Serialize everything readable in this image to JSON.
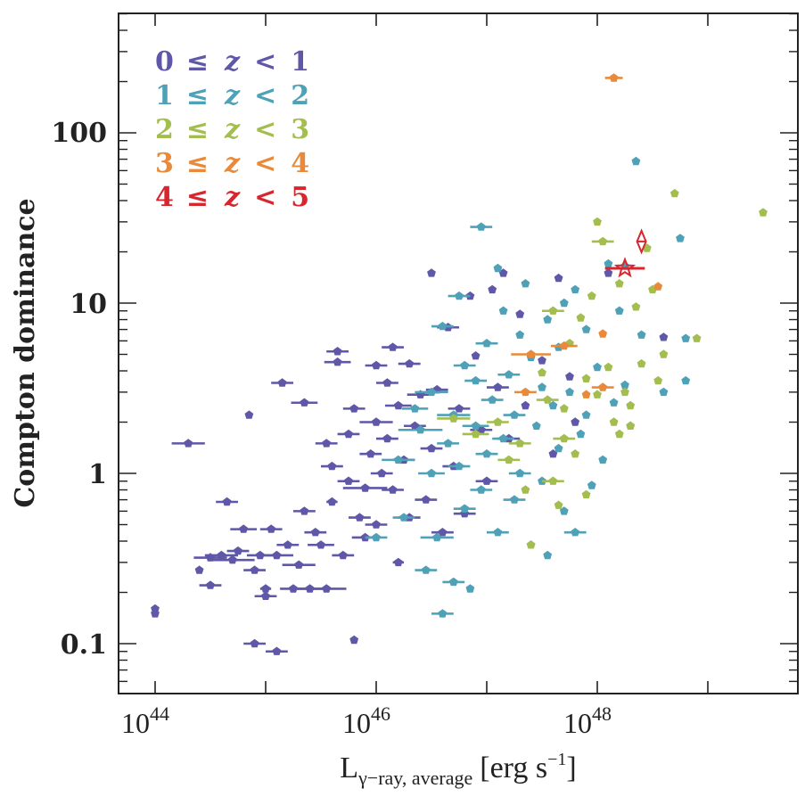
{
  "chart_data": {
    "type": "scatter",
    "title": "",
    "xlabel": "L_{γ−ray, average} [erg s^{−1}]",
    "xlabel_main": "L",
    "xlabel_sub": "γ−ray, average",
    "xlabel_units": "[erg s",
    "xlabel_units_sup": "−1",
    "xlabel_units_close": "]",
    "ylabel": "Compton dominance",
    "xscale": "log",
    "yscale": "log",
    "xlim_log10": [
      43.67,
      49.8
    ],
    "ylim": [
      0.05,
      500
    ],
    "grid": false,
    "legend_position": "top-left",
    "xticks": [
      {
        "base": "10",
        "exp": "44",
        "value_log10": 44
      },
      {
        "base": "10",
        "exp": "46",
        "value_log10": 46
      },
      {
        "base": "10",
        "exp": "48",
        "value_log10": 48
      }
    ],
    "xticks_unlabeled_log10": [
      45,
      47,
      49
    ],
    "yticks": [
      {
        "label": "100",
        "value": 100
      },
      {
        "label": "10",
        "value": 10
      },
      {
        "label": "1",
        "value": 1
      },
      {
        "label": "0.1",
        "value": 0.1
      }
    ],
    "series": [
      {
        "name": "0 ≤ z < 1",
        "legend": {
          "lo": "0",
          "le": "≤",
          "z": "z",
          "lt": "<",
          "hi": "1"
        },
        "color": "#5f57a8",
        "marker": "pentagon",
        "points": [
          [
            44.0,
            0.16,
            0
          ],
          [
            44.0,
            0.15,
            0
          ],
          [
            44.3,
            1.5,
            0.15
          ],
          [
            44.4,
            0.27,
            0
          ],
          [
            44.5,
            0.22,
            0.1
          ],
          [
            44.5,
            0.32,
            0.15
          ],
          [
            44.6,
            0.33,
            0.15
          ],
          [
            44.65,
            0.68,
            0.1
          ],
          [
            44.7,
            0.31,
            0.2
          ],
          [
            44.75,
            0.35,
            0.1
          ],
          [
            44.8,
            0.47,
            0.12
          ],
          [
            44.85,
            2.2,
            0
          ],
          [
            44.9,
            0.27,
            0.1
          ],
          [
            44.9,
            0.1,
            0.1
          ],
          [
            44.95,
            0.33,
            0.12
          ],
          [
            45.0,
            0.21,
            0.05
          ],
          [
            45.0,
            0.19,
            0.1
          ],
          [
            45.05,
            0.47,
            0.1
          ],
          [
            45.1,
            0.09,
            0.1
          ],
          [
            45.1,
            0.33,
            0.15
          ],
          [
            45.15,
            3.4,
            0.1
          ],
          [
            45.2,
            0.38,
            0.1
          ],
          [
            45.25,
            0.21,
            0.12
          ],
          [
            45.3,
            0.29,
            0.15
          ],
          [
            45.35,
            0.6,
            0.1
          ],
          [
            45.35,
            2.6,
            0.12
          ],
          [
            45.4,
            0.21,
            0.15
          ],
          [
            45.45,
            0.45,
            0.1
          ],
          [
            45.5,
            0.38,
            0.12
          ],
          [
            45.55,
            0.21,
            0.18
          ],
          [
            45.55,
            1.5,
            0.1
          ],
          [
            45.6,
            0.68,
            0.05
          ],
          [
            45.6,
            1.1,
            0.1
          ],
          [
            45.65,
            4.5,
            0.12
          ],
          [
            45.65,
            5.2,
            0.1
          ],
          [
            45.7,
            0.33,
            0.1
          ],
          [
            45.75,
            0.9,
            0.1
          ],
          [
            45.75,
            1.7,
            0.1
          ],
          [
            45.8,
            2.4,
            0.1
          ],
          [
            45.8,
            0.105,
            0
          ],
          [
            45.85,
            0.55,
            0.1
          ],
          [
            45.9,
            0.42,
            0.12
          ],
          [
            45.9,
            0.82,
            0.2
          ],
          [
            45.95,
            1.3,
            0.1
          ],
          [
            46.0,
            4.3,
            0.1
          ],
          [
            46.0,
            0.5,
            0.1
          ],
          [
            46.0,
            2.0,
            0.15
          ],
          [
            46.05,
            1.0,
            0.1
          ],
          [
            46.1,
            3.4,
            0.1
          ],
          [
            46.1,
            1.6,
            0.1
          ],
          [
            46.15,
            0.8,
            0.1
          ],
          [
            46.15,
            5.5,
            0.1
          ],
          [
            46.2,
            0.3,
            0.05
          ],
          [
            46.2,
            2.5,
            0.12
          ],
          [
            46.25,
            1.2,
            0.1
          ],
          [
            46.3,
            4.4,
            0.1
          ],
          [
            46.3,
            0.55,
            0.1
          ],
          [
            46.35,
            1.9,
            0.1
          ],
          [
            46.4,
            2.9,
            0.12
          ],
          [
            46.45,
            0.7,
            0.1
          ],
          [
            46.5,
            15.0,
            0
          ],
          [
            46.5,
            1.4,
            0.1
          ],
          [
            46.55,
            3.1,
            0.1
          ],
          [
            46.6,
            0.45,
            0.1
          ],
          [
            46.65,
            7.2,
            0.1
          ],
          [
            46.7,
            1.1,
            0.1
          ],
          [
            46.75,
            2.4,
            0.1
          ],
          [
            46.8,
            0.58,
            0.1
          ],
          [
            46.85,
            11.0,
            0
          ],
          [
            46.9,
            4.9,
            0
          ],
          [
            46.95,
            1.8,
            0.1
          ],
          [
            47.0,
            0.9,
            0.1
          ],
          [
            47.05,
            12.0,
            0
          ],
          [
            47.1,
            3.2,
            0.1
          ],
          [
            47.15,
            15.0,
            0
          ],
          [
            47.2,
            1.6,
            0.1
          ],
          [
            47.3,
            8.6,
            0
          ],
          [
            47.35,
            2.5,
            0
          ],
          [
            47.5,
            4.6,
            0
          ],
          [
            47.6,
            1.3,
            0
          ],
          [
            47.65,
            14.0,
            0
          ],
          [
            47.75,
            3.7,
            0
          ],
          [
            47.8,
            2.0,
            0
          ],
          [
            48.1,
            15.0,
            0
          ],
          [
            48.6,
            6.3,
            0
          ]
        ]
      },
      {
        "name": "1 ≤ z < 2",
        "legend": {
          "lo": "1",
          "le": "≤",
          "z": "z",
          "lt": "<",
          "hi": "2"
        },
        "color": "#4fa1b8",
        "marker": "pentagon",
        "points": [
          [
            46.0,
            0.42,
            0.1
          ],
          [
            46.2,
            1.2,
            0.15
          ],
          [
            46.25,
            0.55,
            0.1
          ],
          [
            46.35,
            2.4,
            0.12
          ],
          [
            46.4,
            1.8,
            0.2
          ],
          [
            46.45,
            0.27,
            0.1
          ],
          [
            46.5,
            1.0,
            0.12
          ],
          [
            46.5,
            3.0,
            0.15
          ],
          [
            46.55,
            0.42,
            0.15
          ],
          [
            46.6,
            0.15,
            0.1
          ],
          [
            46.6,
            7.3,
            0.1
          ],
          [
            46.65,
            1.5,
            0.1
          ],
          [
            46.7,
            0.23,
            0.1
          ],
          [
            46.7,
            2.2,
            0.15
          ],
          [
            46.75,
            1.1,
            0.1
          ],
          [
            46.75,
            11.0,
            0.1
          ],
          [
            46.8,
            0.62,
            0.1
          ],
          [
            46.8,
            4.3,
            0.1
          ],
          [
            46.85,
            0.21,
            0
          ],
          [
            46.9,
            1.9,
            0.12
          ],
          [
            46.9,
            3.5,
            0.1
          ],
          [
            46.95,
            28.0,
            0.1
          ],
          [
            46.95,
            0.8,
            0.1
          ],
          [
            47.0,
            1.3,
            0.1
          ],
          [
            47.0,
            5.8,
            0.1
          ],
          [
            47.05,
            2.7,
            0.1
          ],
          [
            47.1,
            0.45,
            0.1
          ],
          [
            47.1,
            16.0,
            0
          ],
          [
            47.15,
            1.6,
            0.1
          ],
          [
            47.15,
            9.0,
            0
          ],
          [
            47.2,
            3.8,
            0.1
          ],
          [
            47.25,
            0.7,
            0.1
          ],
          [
            47.25,
            2.2,
            0.1
          ],
          [
            47.3,
            1.0,
            0.1
          ],
          [
            47.3,
            6.5,
            0
          ],
          [
            47.35,
            13.0,
            0
          ],
          [
            47.4,
            0.38,
            0
          ],
          [
            47.4,
            4.8,
            0
          ],
          [
            47.45,
            1.9,
            0
          ],
          [
            47.5,
            0.9,
            0
          ],
          [
            47.5,
            3.2,
            0
          ],
          [
            47.55,
            8.0,
            0
          ],
          [
            47.55,
            0.33,
            0
          ],
          [
            47.6,
            2.5,
            0
          ],
          [
            47.65,
            1.4,
            0
          ],
          [
            47.65,
            5.5,
            0
          ],
          [
            47.7,
            0.6,
            0
          ],
          [
            47.7,
            10.0,
            0
          ],
          [
            47.75,
            3.0,
            0
          ],
          [
            47.8,
            0.45,
            0.1
          ],
          [
            47.8,
            12.0,
            0
          ],
          [
            47.85,
            1.7,
            0
          ],
          [
            47.9,
            2.2,
            0
          ],
          [
            47.9,
            7.0,
            0
          ],
          [
            47.95,
            0.85,
            0
          ],
          [
            48.0,
            4.2,
            0
          ],
          [
            48.05,
            1.2,
            0
          ],
          [
            48.1,
            17.0,
            0
          ],
          [
            48.15,
            2.6,
            0
          ],
          [
            48.2,
            9.0,
            0
          ],
          [
            48.25,
            3.3,
            0
          ],
          [
            48.3,
            1.9,
            0
          ],
          [
            48.35,
            68.0,
            0
          ],
          [
            48.4,
            6.5,
            0
          ],
          [
            48.6,
            3.0,
            0
          ],
          [
            48.75,
            24.0,
            0
          ],
          [
            48.8,
            6.2,
            0
          ],
          [
            48.8,
            3.5,
            0
          ],
          [
            48.25,
            16.5,
            0
          ]
        ]
      },
      {
        "name": "2 ≤ z < 3",
        "legend": {
          "lo": "2",
          "le": "≤",
          "z": "z",
          "lt": "<",
          "hi": "3"
        },
        "color": "#a3be4f",
        "marker": "pentagon",
        "points": [
          [
            46.7,
            2.1,
            0.15
          ],
          [
            46.9,
            1.7,
            0.12
          ],
          [
            47.1,
            2.0,
            0.1
          ],
          [
            47.2,
            1.2,
            0.1
          ],
          [
            47.3,
            1.5,
            0.1
          ],
          [
            47.35,
            0.8,
            0
          ],
          [
            47.4,
            0.38,
            0
          ],
          [
            47.5,
            3.9,
            0
          ],
          [
            47.55,
            2.7,
            0.1
          ],
          [
            47.6,
            0.9,
            0.1
          ],
          [
            47.6,
            9.0,
            0.1
          ],
          [
            47.7,
            2.4,
            0
          ],
          [
            47.75,
            5.8,
            0
          ],
          [
            47.8,
            1.3,
            0
          ],
          [
            47.85,
            8.2,
            0
          ],
          [
            47.9,
            0.75,
            0
          ],
          [
            47.9,
            3.6,
            0
          ],
          [
            47.95,
            11.0,
            0
          ],
          [
            48.0,
            2.9,
            0
          ],
          [
            48.0,
            30.0,
            0
          ],
          [
            48.05,
            23.0,
            0.1
          ],
          [
            48.1,
            4.2,
            0
          ],
          [
            48.15,
            2.0,
            0
          ],
          [
            48.2,
            13.0,
            0
          ],
          [
            48.25,
            3.0,
            0
          ],
          [
            48.3,
            1.9,
            0
          ],
          [
            48.35,
            9.5,
            0
          ],
          [
            48.45,
            21.0,
            0
          ],
          [
            48.5,
            12.0,
            0
          ],
          [
            48.55,
            3.5,
            0
          ],
          [
            48.6,
            5.0,
            0
          ],
          [
            48.7,
            44.0,
            0
          ],
          [
            48.9,
            6.2,
            0
          ],
          [
            49.5,
            34.0,
            0
          ],
          [
            48.2,
            1.7,
            0
          ],
          [
            48.3,
            2.5,
            0
          ],
          [
            47.7,
            1.6,
            0.1
          ],
          [
            47.65,
            0.65,
            0
          ],
          [
            48.4,
            4.4,
            0
          ]
        ]
      },
      {
        "name": "3 ≤ z < 4",
        "legend": {
          "lo": "3",
          "le": "≤",
          "z": "z",
          "lt": "<",
          "hi": "4"
        },
        "color": "#e88a3a",
        "marker": "pentagon",
        "points": [
          [
            48.15,
            210.0,
            0.08
          ],
          [
            47.4,
            5.0,
            0.18
          ],
          [
            47.7,
            5.6,
            0.12
          ],
          [
            47.35,
            3.0,
            0.1
          ],
          [
            48.05,
            3.2,
            0.1
          ],
          [
            47.9,
            2.9,
            0
          ],
          [
            48.05,
            6.6,
            0
          ],
          [
            48.55,
            12.5,
            0
          ]
        ]
      },
      {
        "name": "4 ≤ z < 5",
        "legend": {
          "lo": "4",
          "le": "≤",
          "z": "z",
          "lt": "<",
          "hi": "5"
        },
        "color": "#d7262e",
        "marker": "star",
        "points": [
          [
            48.25,
            16.0,
            0.18
          ]
        ],
        "limits": [
          [
            48.4,
            23.0
          ]
        ]
      }
    ]
  }
}
